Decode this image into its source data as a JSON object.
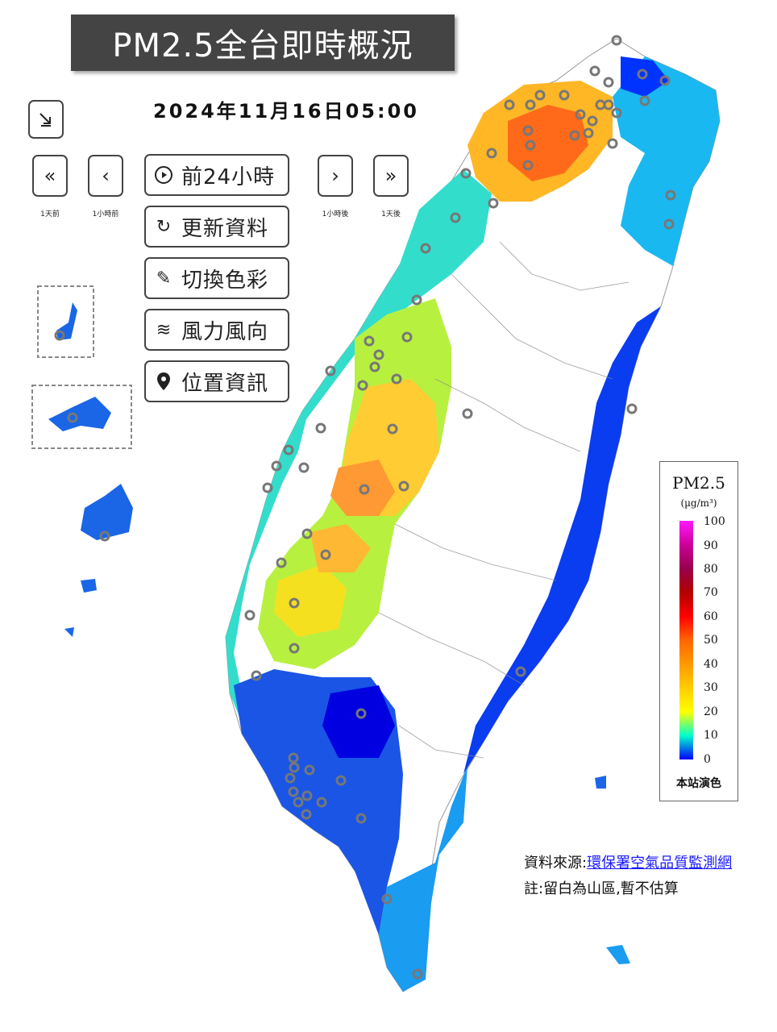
{
  "header": {
    "title": "PM2.5全台即時概況",
    "datetime": "2024年11月16日05:00"
  },
  "nav": {
    "collapse_icon": "arrow-down-right-icon",
    "prev_day": {
      "glyph": "«",
      "caption": "1天前"
    },
    "prev_hour": {
      "glyph": "‹",
      "caption": "1小時前"
    },
    "next_hour": {
      "glyph": "›",
      "caption": "1小時後"
    },
    "next_day": {
      "glyph": "»",
      "caption": "1天後"
    }
  },
  "buttons": [
    {
      "icon": "play-circle-icon",
      "glyph": "▶",
      "label": "前24小時"
    },
    {
      "icon": "refresh-icon",
      "glyph": "↻",
      "label": "更新資料"
    },
    {
      "icon": "paint-brush-icon",
      "glyph": "✎",
      "label": "切換色彩"
    },
    {
      "icon": "wind-icon",
      "glyph": "≋",
      "label": "風力風向"
    },
    {
      "icon": "map-pin-icon",
      "glyph": "●",
      "label": "位置資訊"
    }
  ],
  "legend": {
    "title": "PM2.5",
    "unit": "(µg/m³)",
    "ticks": [
      "100",
      "90",
      "80",
      "70",
      "60",
      "50",
      "40",
      "30",
      "20",
      "10",
      "0"
    ],
    "footer": "本站演色"
  },
  "source": {
    "prefix": "資料來源:",
    "link_text": "環保署空氣品質監測網"
  },
  "note": "註:留白為山區,暫不估算",
  "colors": {
    "very_high": "#ff4000",
    "high": "#ff8c1a",
    "mid": "#ffd21a",
    "moderate": "#ccff33",
    "low": "#1ae0e0",
    "very_low": "#1a66ff",
    "clean": "#0000ff"
  }
}
